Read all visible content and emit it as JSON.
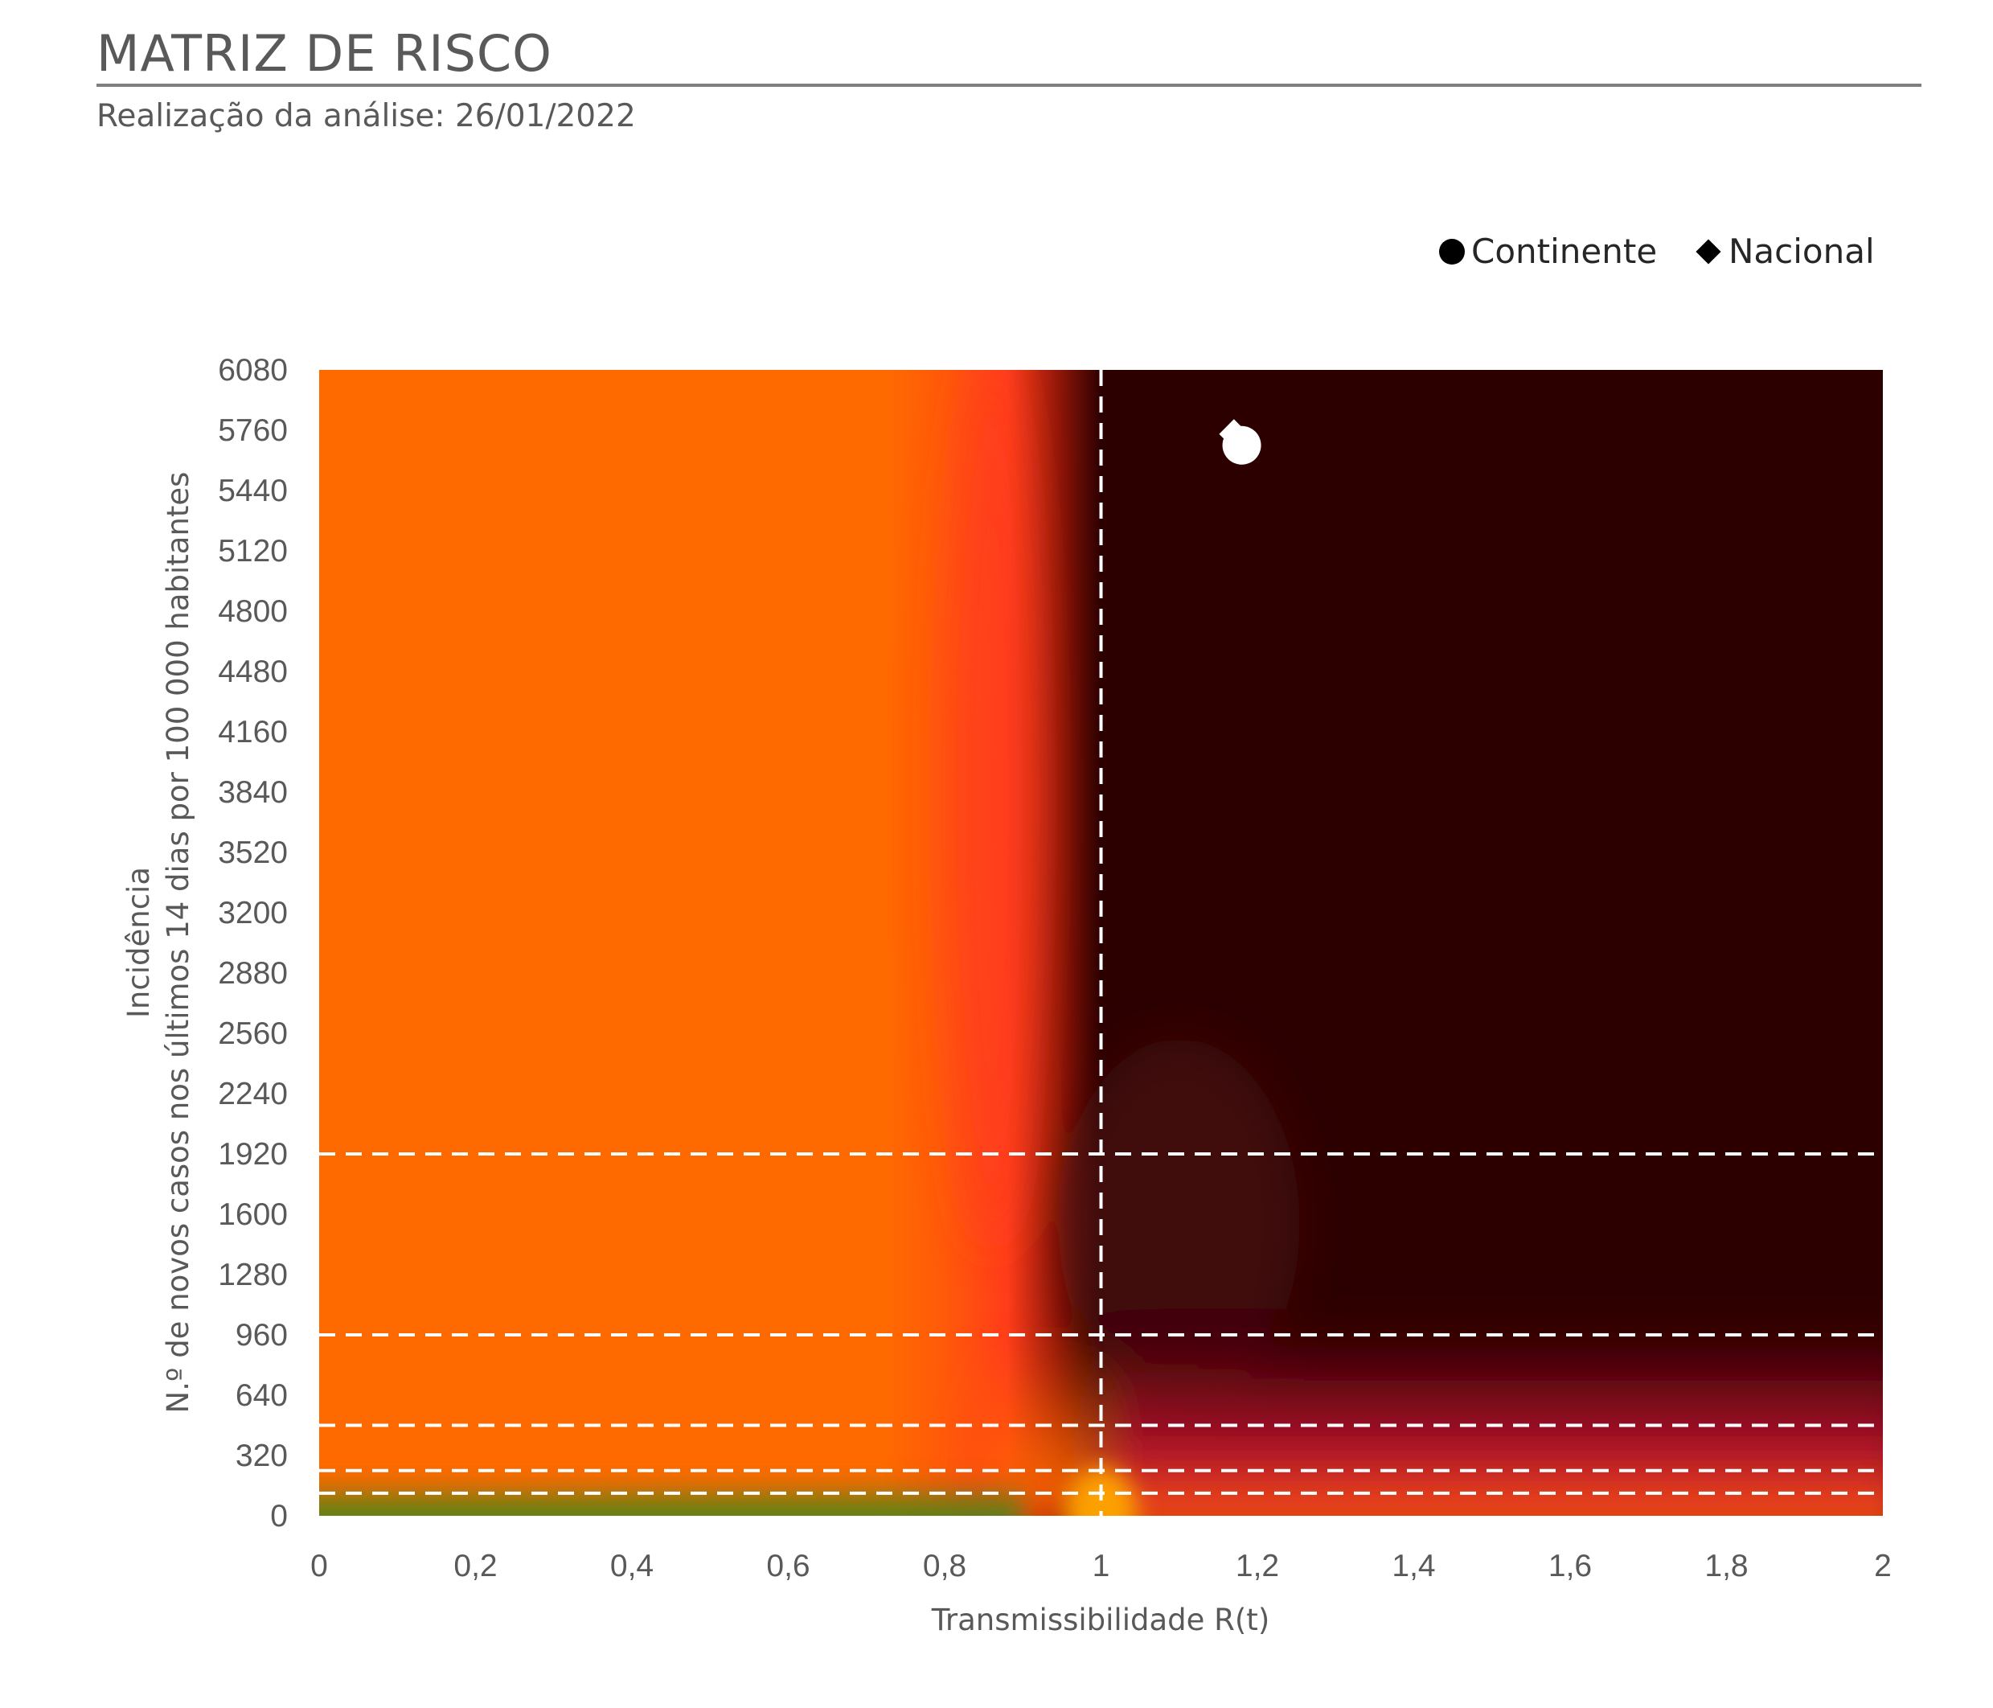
{
  "header": {
    "title": "MATRIZ DE RISCO",
    "subtitle": "Realização da análise: 26/01/2022"
  },
  "chart_data": {
    "type": "scatter",
    "background": "heatmap",
    "xlabel": "Transmissibilidade R(t)",
    "ylabel": "Incidência",
    "ylabel_line2": "N.º de novos casos nos últimos 14 dias por 100 000 habitantes",
    "xlim": [
      0,
      2
    ],
    "ylim": [
      0,
      6080
    ],
    "x_ticks": [
      0,
      0.2,
      0.4,
      0.6,
      0.8,
      1,
      1.2,
      1.4,
      1.6,
      1.8,
      2
    ],
    "x_tick_labels": [
      "0",
      "0,2",
      "0,4",
      "0,6",
      "0,8",
      "1",
      "1,2",
      "1,4",
      "1,6",
      "1,8",
      "2"
    ],
    "y_ticks": [
      0,
      320,
      640,
      960,
      1280,
      1600,
      1920,
      2240,
      2560,
      2880,
      3200,
      3520,
      3840,
      4160,
      4480,
      4800,
      5120,
      5440,
      5760,
      6080
    ],
    "y_tick_labels": [
      "0",
      "320",
      "640",
      "960",
      "1280",
      "1600",
      "1920",
      "2240",
      "2560",
      "2880",
      "3200",
      "3520",
      "3840",
      "4160",
      "4480",
      "4800",
      "5120",
      "5440",
      "5760",
      "6080"
    ],
    "threshold_lines_y": [
      120,
      240,
      480,
      960,
      1920
    ],
    "threshold_line_x": 1,
    "legend_position": "top-right",
    "series": [
      {
        "name": "Continente",
        "marker": "circle",
        "color": "#ffffff",
        "x": 1.18,
        "y": 5680
      },
      {
        "name": "Nacional",
        "marker": "diamond",
        "color": "#ffffff",
        "x": 1.17,
        "y": 5740
      }
    ],
    "colors": {
      "orange": "#ff6a00",
      "red_orange": "#ff3d1a",
      "dark": "#2d0000",
      "crimson": "#9e0a26",
      "green": "#2e7d1c",
      "yellow_orange": "#ffa500",
      "threshold_line": "#ffffff"
    }
  }
}
